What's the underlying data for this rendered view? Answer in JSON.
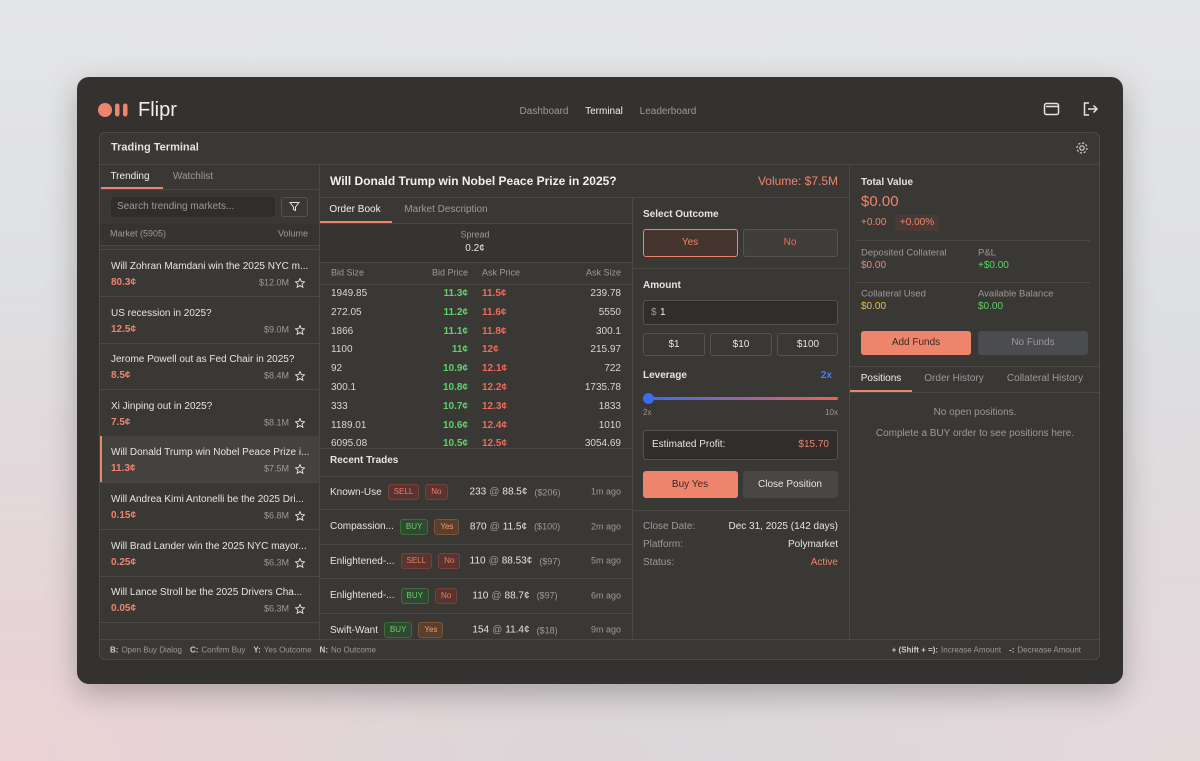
{
  "header": {
    "logo": "Flipr",
    "nav": [
      "Dashboard",
      "Terminal",
      "Leaderboard"
    ]
  },
  "panel_title": "Trading Terminal",
  "sidebar": {
    "tabs": [
      "Trending",
      "Watchlist"
    ],
    "search_placeholder": "Search trending markets...",
    "col_market": "Market (5905)",
    "col_volume": "Volume",
    "markets": [
      {
        "name": "Will Zohran Mamdani win the 2025 NYC m...",
        "price": "80.3¢",
        "volume": "$12.0M"
      },
      {
        "name": "US recession in 2025?",
        "price": "12.5¢",
        "volume": "$9.0M"
      },
      {
        "name": "Jerome Powell out as Fed Chair in 2025?",
        "price": "8.5¢",
        "volume": "$8.4M"
      },
      {
        "name": "Xi Jinping out in 2025?",
        "price": "7.5¢",
        "volume": "$8.1M"
      },
      {
        "name": "Will Donald Trump win Nobel Peace Prize i...",
        "price": "11.3¢",
        "volume": "$7.5M"
      },
      {
        "name": "Will Andrea Kimi Antonelli be the 2025 Dri...",
        "price": "0.15¢",
        "volume": "$6.8M"
      },
      {
        "name": "Will Brad Lander win the 2025 NYC mayor...",
        "price": "0.25¢",
        "volume": "$6.3M"
      },
      {
        "name": "Will Lance Stroll be the 2025 Drivers Cha...",
        "price": "0.05¢",
        "volume": "$6.3M"
      }
    ]
  },
  "market": {
    "title": "Will Donald Trump win Nobel Peace Prize in 2025?",
    "volume": "Volume: $7.5M",
    "tabs": [
      "Order Book",
      "Market Description"
    ],
    "spread_label": "Spread",
    "spread": "0.2¢",
    "book_columns": [
      "Bid Size",
      "Bid Price",
      "Ask Price",
      "Ask Size"
    ],
    "book": [
      [
        "1949.85",
        "11.3¢",
        "11.5¢",
        "239.78"
      ],
      [
        "272.05",
        "11.2¢",
        "11.6¢",
        "5550"
      ],
      [
        "1866",
        "11.1¢",
        "11.8¢",
        "300.1"
      ],
      [
        "1100",
        "11¢",
        "12¢",
        "215.97"
      ],
      [
        "92",
        "10.9¢",
        "12.1¢",
        "722"
      ],
      [
        "300.1",
        "10.8¢",
        "12.2¢",
        "1735.78"
      ],
      [
        "333",
        "10.7¢",
        "12.3¢",
        "1833"
      ],
      [
        "1189.01",
        "10.6¢",
        "12.4¢",
        "1010"
      ],
      [
        "6095.08",
        "10.5¢",
        "12.5¢",
        "3054.69"
      ]
    ],
    "trades_title": "Recent Trades",
    "trades_at": "@",
    "trades": [
      {
        "trader": "Known-Use",
        "side": "SELL",
        "outcome": "No",
        "qty": "233",
        "price": "88.5¢",
        "usd": "($206)",
        "time": "1m ago"
      },
      {
        "trader": "Compassion...",
        "side": "BUY",
        "outcome": "Yes",
        "qty": "870",
        "price": "11.5¢",
        "usd": "($100)",
        "time": "2m ago"
      },
      {
        "trader": "Enlightened-...",
        "side": "SELL",
        "outcome": "No",
        "qty": "110",
        "price": "88.53¢",
        "usd": "($97)",
        "time": "5m ago"
      },
      {
        "trader": "Enlightened-...",
        "side": "BUY",
        "outcome": "No",
        "qty": "110",
        "price": "88.7¢",
        "usd": "($97)",
        "time": "6m ago"
      },
      {
        "trader": "Swift-Want",
        "side": "BUY",
        "outcome": "Yes",
        "qty": "154",
        "price": "11.4¢",
        "usd": "($18)",
        "time": "9m ago"
      }
    ]
  },
  "trade": {
    "select_outcome": "Select Outcome",
    "yes": "Yes",
    "no": "No",
    "amount_label": "Amount",
    "currency": "$",
    "amount": "1",
    "quick": [
      "$1",
      "$10",
      "$100"
    ],
    "leverage_label": "Leverage",
    "leverage": "2x",
    "lev_min": "2x",
    "lev_max": "10x",
    "profit_label": "Estimated Profit:",
    "profit": "$15.70",
    "buy": "Buy Yes",
    "close": "Close Position",
    "info": [
      {
        "label": "Close Date:",
        "value": "Dec 31, 2025 (142 days)"
      },
      {
        "label": "Platform:",
        "value": "Polymarket"
      },
      {
        "label": "Status:",
        "value": "Active"
      }
    ]
  },
  "account": {
    "total_label": "Total Value",
    "total": "$0.00",
    "change": "+0.00",
    "change_pct": "+0.00%",
    "stats": [
      {
        "label": "Deposited Collateral",
        "value": "$0.00"
      },
      {
        "label": "P&L",
        "value": "+$0.00"
      },
      {
        "label": "Collateral Used",
        "value": "$0.00"
      },
      {
        "label": "Available Balance",
        "value": "$0.00"
      }
    ],
    "add_funds": "Add Funds",
    "no_funds": "No Funds",
    "tabs": [
      "Positions",
      "Order History",
      "Collateral History"
    ],
    "empty": "No open positions.",
    "empty_hint": "Complete a BUY order to see positions here."
  },
  "shortcuts": {
    "left": [
      {
        "key": "B:",
        "action": "Open Buy Dialog"
      },
      {
        "key": "C:",
        "action": "Confirm Buy"
      },
      {
        "key": "Y:",
        "action": "Yes Outcome"
      },
      {
        "key": "N:",
        "action": "No Outcome"
      }
    ],
    "right": [
      {
        "key": "+ (Shift + =):",
        "action": "Increase Amount"
      },
      {
        "key": "-:",
        "action": "Decrease Amount"
      }
    ]
  }
}
